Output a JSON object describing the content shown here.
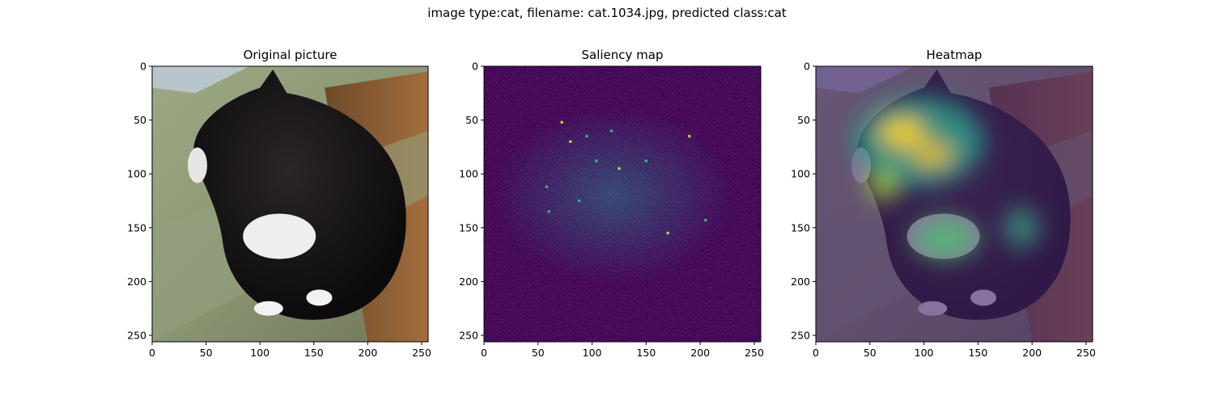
{
  "figure": {
    "suptitle": "image type:cat, filename: cat.1034.jpg, predicted class:cat"
  },
  "chart_data": [
    {
      "type": "heatmap",
      "title": "Original picture",
      "content": "photo",
      "xlabel": "",
      "ylabel": "",
      "xlim": [
        0,
        256
      ],
      "ylim": [
        256,
        0
      ],
      "xticks": [
        0,
        50,
        100,
        150,
        200,
        250
      ],
      "yticks": [
        0,
        50,
        100,
        150,
        200,
        250
      ],
      "grid": false
    },
    {
      "type": "heatmap",
      "title": "Saliency map",
      "content": "saliency",
      "colormap": "viridis",
      "xlabel": "",
      "ylabel": "",
      "xlim": [
        0,
        256
      ],
      "ylim": [
        256,
        0
      ],
      "xticks": [
        0,
        50,
        100,
        150,
        200,
        250
      ],
      "yticks": [
        0,
        50,
        100,
        150,
        200,
        250
      ],
      "grid": false
    },
    {
      "type": "heatmap",
      "title": "Heatmap",
      "content": "overlay",
      "colormap": "viridis",
      "xlabel": "",
      "ylabel": "",
      "xlim": [
        0,
        256
      ],
      "ylim": [
        256,
        0
      ],
      "xticks": [
        0,
        50,
        100,
        150,
        200,
        250
      ],
      "yticks": [
        0,
        50,
        100,
        150,
        200,
        250
      ],
      "grid": false
    }
  ]
}
